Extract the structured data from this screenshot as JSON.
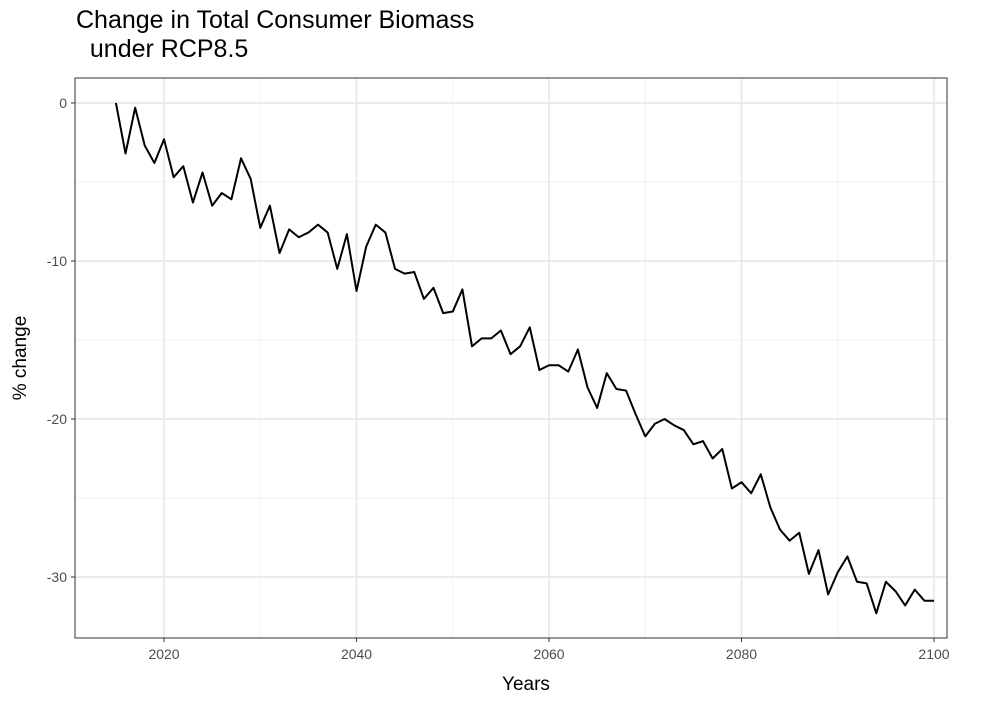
{
  "chart_data": {
    "type": "line",
    "title": "Change in Total Consumer Biomass\n  under RCP8.5",
    "x_label": "Years",
    "y_label": "% change",
    "color": "#000000",
    "x": [
      2015,
      2016,
      2017,
      2018,
      2019,
      2020,
      2021,
      2022,
      2023,
      2024,
      2025,
      2026,
      2027,
      2028,
      2029,
      2030,
      2031,
      2032,
      2033,
      2034,
      2035,
      2036,
      2037,
      2038,
      2039,
      2040,
      2041,
      2042,
      2043,
      2044,
      2045,
      2046,
      2047,
      2048,
      2049,
      2050,
      2051,
      2052,
      2053,
      2054,
      2055,
      2056,
      2057,
      2058,
      2059,
      2060,
      2061,
      2062,
      2063,
      2064,
      2065,
      2066,
      2067,
      2068,
      2069,
      2070,
      2071,
      2072,
      2073,
      2074,
      2075,
      2076,
      2077,
      2078,
      2079,
      2080,
      2081,
      2082,
      2083,
      2084,
      2085,
      2086,
      2087,
      2088,
      2089,
      2090,
      2091,
      2092,
      2093,
      2094,
      2095,
      2096,
      2097,
      2098,
      2099,
      2100
    ],
    "values": [
      0,
      -3.2,
      -0.3,
      -2.7,
      -3.8,
      -2.3,
      -4.7,
      -4.0,
      -6.3,
      -4.4,
      -6.5,
      -5.7,
      -6.1,
      -3.5,
      -4.8,
      -7.9,
      -6.5,
      -9.5,
      -8.0,
      -8.5,
      -8.2,
      -7.7,
      -8.2,
      -10.5,
      -8.3,
      -11.9,
      -9.1,
      -7.7,
      -8.2,
      -10.5,
      -10.8,
      -10.7,
      -12.4,
      -11.7,
      -13.3,
      -13.2,
      -11.8,
      -15.4,
      -14.9,
      -14.9,
      -14.4,
      -15.9,
      -15.4,
      -14.2,
      -16.9,
      -16.6,
      -16.6,
      -17.0,
      -15.6,
      -18.0,
      -19.3,
      -17.1,
      -18.1,
      -18.2,
      -19.7,
      -21.1,
      -20.3,
      -20.0,
      -20.4,
      -20.7,
      -21.6,
      -21.4,
      -22.5,
      -21.9,
      -24.4,
      -24.0,
      -24.7,
      -23.5,
      -25.6,
      -27.0,
      -27.7,
      -27.2,
      -29.8,
      -28.3,
      -31.1,
      -29.7,
      -28.7,
      -30.3,
      -30.4,
      -32.3,
      -30.3,
      -30.9,
      -31.8,
      -30.8,
      -31.5,
      -31.5
    ],
    "xlim": [
      2010.75,
      2101.35
    ],
    "ylim": [
      -33.86,
      1.58
    ],
    "xticks": [
      2020,
      2040,
      2060,
      2080,
      2100
    ],
    "yticks": [
      0,
      -10,
      -20,
      -30
    ],
    "x_minor_ticks": [
      2030,
      2050,
      2070,
      2090
    ],
    "y_minor_ticks": [
      -5,
      -15,
      -25
    ],
    "grid": true
  }
}
